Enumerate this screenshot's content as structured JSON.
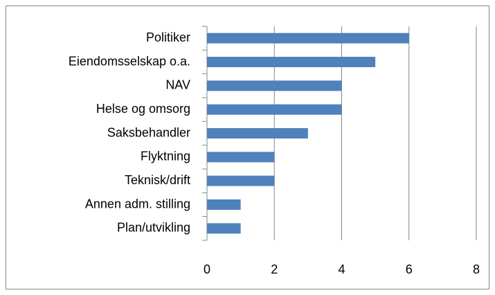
{
  "chart_data": {
    "type": "bar",
    "orientation": "horizontal",
    "categories": [
      "Politiker",
      "Eiendomsselskap o.a.",
      "NAV",
      "Helse og omsorg",
      "Saksbehandler",
      "Flyktning",
      "Teknisk/drift",
      "Annen adm. stilling",
      "Plan/utvikling"
    ],
    "values": [
      6,
      5,
      4,
      4,
      3,
      2,
      2,
      1,
      1
    ],
    "color": "#4f81bd",
    "xlim": [
      0,
      8
    ],
    "xticks": [
      0,
      2,
      4,
      6,
      8
    ],
    "grid": true
  }
}
